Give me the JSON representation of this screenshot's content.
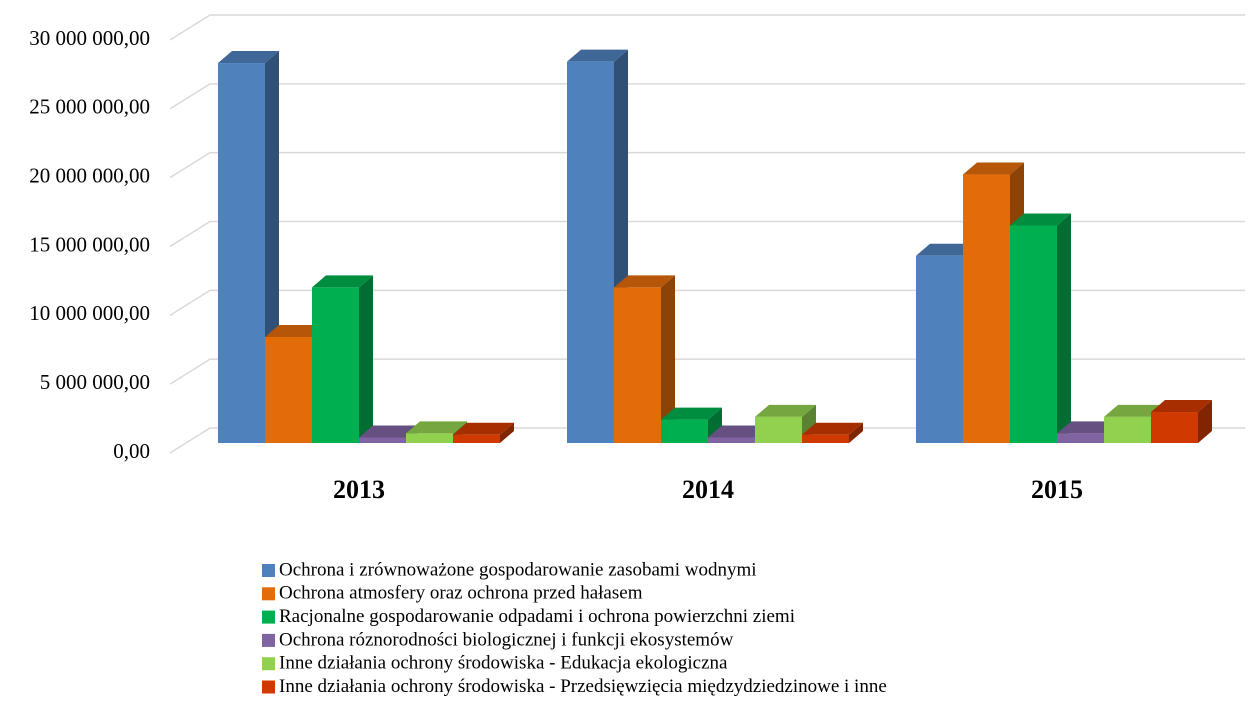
{
  "chart_data": {
    "type": "bar3d",
    "categories": [
      "2013",
      "2014",
      "2015"
    ],
    "series": [
      {
        "name": "Ochrona i zrównoważone gospodarowanie zasobami wodnymi",
        "color": "#4f81bd",
        "values": [
          27600000,
          27700000,
          13600000
        ]
      },
      {
        "name": "Ochrona atmosfery oraz ochrona przed  hałasem",
        "color": "#e36c0a",
        "values": [
          7700000,
          11300000,
          19500000
        ]
      },
      {
        "name": "Racjonalne gospodarowanie odpadami i ochrona powierzchni ziemi",
        "color": "#00b050",
        "values": [
          11300000,
          1700000,
          15800000
        ]
      },
      {
        "name": "Ochrona róznorodności biologicznej i funkcji ekosystemów",
        "color": "#8064a2",
        "values": [
          400000,
          400000,
          700000
        ]
      },
      {
        "name": "Inne działania ochrony środowiska - Edukacja ekologiczna",
        "color": "#92d050",
        "values": [
          700000,
          1900000,
          1900000
        ]
      },
      {
        "name": "Inne działania ochrony środowiska - Przedsięwzięcia międzydziedzinowe i inne",
        "color": "#d03a00",
        "values": [
          600000,
          600000,
          2250000
        ]
      }
    ],
    "ylim": [
      0,
      30000000
    ],
    "yticks": [
      {
        "value": 0,
        "label": "0,00"
      },
      {
        "value": 5000000,
        "label": "5 000 000,00"
      },
      {
        "value": 10000000,
        "label": "10 000 000,00"
      },
      {
        "value": 15000000,
        "label": "15 000 000,00"
      },
      {
        "value": 20000000,
        "label": "20 000 000,00"
      },
      {
        "value": 25000000,
        "label": "25 000 000,00"
      },
      {
        "value": 30000000,
        "label": "30 000 000,00"
      }
    ],
    "grid": true
  }
}
